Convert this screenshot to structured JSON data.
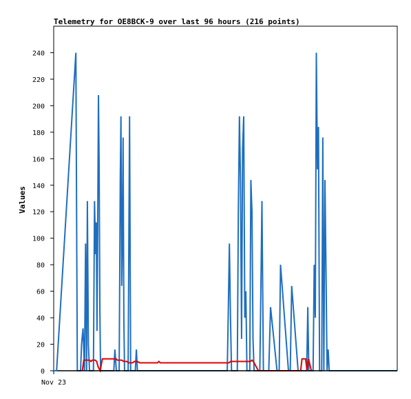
{
  "chart_data": {
    "type": "line",
    "title": "Telemetry for OE8BCK-9 over last 96 hours (216 points)",
    "xlabel": "",
    "ylabel": "Values",
    "ylim": [
      0,
      260
    ],
    "xlim": [
      0,
      96
    ],
    "y_ticks": [
      0,
      20,
      40,
      60,
      80,
      100,
      120,
      140,
      160,
      180,
      200,
      220,
      240
    ],
    "x_tick_labels": [
      {
        "x": 0,
        "label": "Nov 23"
      }
    ],
    "grid": false,
    "colors": {
      "blue": "#1f6ebf",
      "red": "#e00000",
      "black": "#000000"
    },
    "series": [
      {
        "color": "#1f6ebf",
        "points": [
          [
            0,
            0
          ],
          [
            0.8,
            0
          ],
          [
            6.2,
            240
          ],
          [
            6.6,
            0
          ],
          [
            7.5,
            0
          ],
          [
            7.8,
            20
          ],
          [
            8.2,
            32
          ],
          [
            8.6,
            0
          ],
          [
            8.9,
            96
          ],
          [
            9.2,
            0
          ],
          [
            9.4,
            128
          ],
          [
            9.7,
            20
          ],
          [
            10.0,
            0
          ],
          [
            11.1,
            0
          ],
          [
            11.4,
            128
          ],
          [
            11.7,
            88
          ],
          [
            11.9,
            112
          ],
          [
            12.1,
            30
          ],
          [
            12.3,
            104
          ],
          [
            12.5,
            208
          ],
          [
            12.7,
            156
          ],
          [
            12.9,
            44
          ],
          [
            13.1,
            0
          ],
          [
            16.8,
            0
          ],
          [
            17.1,
            16
          ],
          [
            17.5,
            0
          ],
          [
            18.3,
            0
          ],
          [
            18.6,
            144
          ],
          [
            18.8,
            192
          ],
          [
            19.0,
            64
          ],
          [
            19.2,
            96
          ],
          [
            19.4,
            176
          ],
          [
            19.6,
            40
          ],
          [
            19.8,
            0
          ],
          [
            20.8,
            0
          ],
          [
            21.2,
            192
          ],
          [
            21.5,
            0
          ],
          [
            22.8,
            0
          ],
          [
            23.1,
            16
          ],
          [
            23.4,
            0
          ],
          [
            48.5,
            0
          ],
          [
            48.8,
            48
          ],
          [
            49.1,
            96
          ],
          [
            49.4,
            40
          ],
          [
            49.7,
            0
          ],
          [
            51.3,
            0
          ],
          [
            51.6,
            120
          ],
          [
            51.9,
            192
          ],
          [
            52.2,
            144
          ],
          [
            52.5,
            24
          ],
          [
            52.8,
            168
          ],
          [
            53.1,
            192
          ],
          [
            53.4,
            40
          ],
          [
            53.7,
            60
          ],
          [
            54.0,
            0
          ],
          [
            54.8,
            0
          ],
          [
            55.1,
            144
          ],
          [
            55.4,
            120
          ],
          [
            55.7,
            24
          ],
          [
            56.0,
            0
          ],
          [
            57.6,
            0
          ],
          [
            57.9,
            64
          ],
          [
            58.2,
            128
          ],
          [
            58.6,
            0
          ],
          [
            60.1,
            0
          ],
          [
            60.6,
            48
          ],
          [
            62.4,
            0
          ],
          [
            63.0,
            0
          ],
          [
            63.4,
            80
          ],
          [
            65.6,
            0
          ],
          [
            66.1,
            0
          ],
          [
            66.5,
            64
          ],
          [
            68.3,
            0
          ],
          [
            70.7,
            0
          ],
          [
            71.0,
            48
          ],
          [
            71.3,
            0
          ],
          [
            72.5,
            0
          ],
          [
            72.8,
            80
          ],
          [
            73.1,
            40
          ],
          [
            73.4,
            240
          ],
          [
            73.7,
            152
          ],
          [
            74.0,
            184
          ],
          [
            74.3,
            0
          ],
          [
            74.9,
            0
          ],
          [
            75.2,
            176
          ],
          [
            75.5,
            0
          ],
          [
            75.8,
            144
          ],
          [
            76.1,
            72
          ],
          [
            76.4,
            0
          ],
          [
            76.7,
            16
          ],
          [
            77.0,
            0
          ],
          [
            96,
            0
          ]
        ]
      },
      {
        "color": "#e00000",
        "points": [
          [
            8.0,
            0
          ],
          [
            8.4,
            8
          ],
          [
            10.0,
            8
          ],
          [
            10.4,
            7
          ],
          [
            10.8,
            8
          ],
          [
            11.6,
            8
          ],
          [
            12.0,
            7
          ],
          [
            12.4,
            3
          ],
          [
            13.0,
            0
          ],
          [
            13.6,
            9
          ],
          [
            17.4,
            9
          ],
          [
            17.8,
            8
          ],
          [
            19.0,
            8
          ],
          [
            19.6,
            7
          ],
          [
            20.4,
            7
          ],
          [
            21.0,
            6
          ],
          [
            22.0,
            6
          ],
          [
            22.6,
            7
          ],
          [
            23.4,
            7
          ],
          [
            24.0,
            6
          ],
          [
            25.0,
            6
          ],
          [
            29.0,
            6
          ],
          [
            29.4,
            7
          ],
          [
            29.8,
            6
          ],
          [
            30.6,
            6
          ],
          [
            49.0,
            6
          ],
          [
            49.4,
            7
          ],
          [
            52.0,
            7
          ],
          [
            53.0,
            7
          ],
          [
            55.0,
            7
          ],
          [
            55.4,
            8
          ],
          [
            55.8,
            7
          ],
          [
            57.2,
            0
          ],
          [
            69.0,
            0
          ],
          [
            69.4,
            9
          ],
          [
            70.4,
            9
          ],
          [
            70.8,
            0
          ],
          [
            71.2,
            9
          ],
          [
            72.0,
            0
          ]
        ]
      },
      {
        "color": "#000000",
        "points": [
          [
            1.0,
            0
          ],
          [
            96,
            0
          ]
        ]
      }
    ]
  }
}
